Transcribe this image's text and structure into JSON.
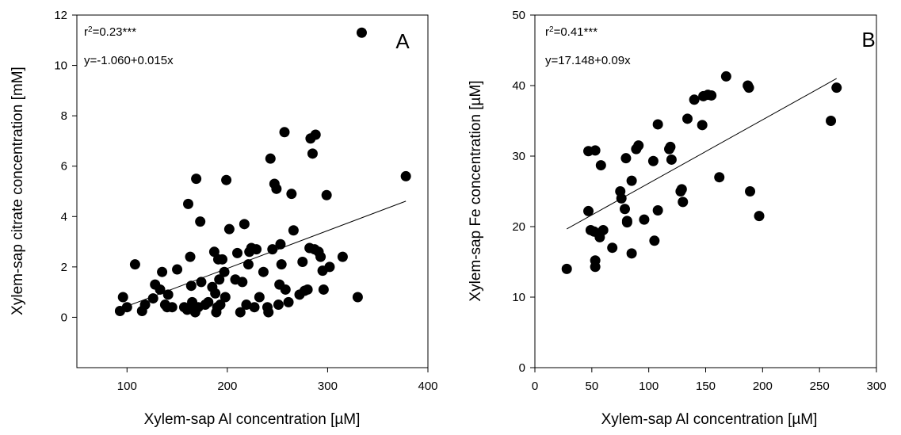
{
  "chart_data": [
    {
      "type": "scatter",
      "panel_label": "A",
      "xlabel": "Xylem-sap Al concentration [µM]",
      "ylabel": "Xylem-sap citrate concentration  [mM]",
      "xlim": [
        50,
        400
      ],
      "ylim": [
        -2,
        12
      ],
      "xticks": [
        100,
        200,
        300,
        400
      ],
      "yticks": [
        0,
        2,
        4,
        6,
        8,
        10,
        12
      ],
      "annotations": {
        "r2_prefix": "r",
        "r2_sup": "2",
        "r2_value": "=0.23***",
        "equation": "y=-1.060+0.015x"
      },
      "regression": {
        "intercept": -1.06,
        "slope": 0.015,
        "x_range": [
          93,
          378
        ]
      },
      "points": [
        [
          93,
          0.25
        ],
        [
          96,
          0.8
        ],
        [
          100,
          0.4
        ],
        [
          108,
          2.1
        ],
        [
          115,
          0.25
        ],
        [
          118,
          0.5
        ],
        [
          126,
          0.75
        ],
        [
          128,
          1.3
        ],
        [
          133,
          1.1
        ],
        [
          135,
          1.8
        ],
        [
          138,
          0.5
        ],
        [
          140,
          0.4
        ],
        [
          141,
          0.9
        ],
        [
          145,
          0.4
        ],
        [
          150,
          1.9
        ],
        [
          157,
          0.4
        ],
        [
          160,
          0.3
        ],
        [
          161,
          4.5
        ],
        [
          163,
          2.4
        ],
        [
          164,
          1.25
        ],
        [
          165,
          0.6
        ],
        [
          166,
          0.4
        ],
        [
          168,
          0.2
        ],
        [
          169,
          5.5
        ],
        [
          171,
          0.4
        ],
        [
          173,
          3.8
        ],
        [
          174,
          1.4
        ],
        [
          178,
          0.5
        ],
        [
          181,
          0.6
        ],
        [
          185,
          1.2
        ],
        [
          187,
          2.6
        ],
        [
          188,
          0.95
        ],
        [
          189,
          0.2
        ],
        [
          190,
          0.4
        ],
        [
          191,
          2.3
        ],
        [
          192,
          1.5
        ],
        [
          193,
          0.5
        ],
        [
          195,
          2.3
        ],
        [
          197,
          1.8
        ],
        [
          198,
          0.8
        ],
        [
          199,
          5.45
        ],
        [
          202,
          3.5
        ],
        [
          208,
          1.5
        ],
        [
          210,
          2.55
        ],
        [
          213,
          0.2
        ],
        [
          215,
          1.4
        ],
        [
          217,
          3.7
        ],
        [
          219,
          0.5
        ],
        [
          221,
          2.1
        ],
        [
          222,
          2.6
        ],
        [
          224,
          2.75
        ],
        [
          227,
          0.4
        ],
        [
          229,
          2.7
        ],
        [
          232,
          0.8
        ],
        [
          236,
          1.8
        ],
        [
          240,
          0.4
        ],
        [
          241,
          0.2
        ],
        [
          243,
          6.3
        ],
        [
          245,
          2.7
        ],
        [
          247,
          5.3
        ],
        [
          249,
          5.1
        ],
        [
          251,
          0.5
        ],
        [
          252,
          1.3
        ],
        [
          253,
          2.9
        ],
        [
          254,
          2.1
        ],
        [
          257,
          7.35
        ],
        [
          258,
          1.1
        ],
        [
          261,
          0.6
        ],
        [
          264,
          4.9
        ],
        [
          266,
          3.45
        ],
        [
          272,
          0.9
        ],
        [
          275,
          2.2
        ],
        [
          277,
          1.05
        ],
        [
          280,
          1.1
        ],
        [
          282,
          2.75
        ],
        [
          283,
          7.1
        ],
        [
          285,
          6.5
        ],
        [
          287,
          2.7
        ],
        [
          288,
          7.25
        ],
        [
          291,
          2.6
        ],
        [
          293,
          2.4
        ],
        [
          295,
          1.85
        ],
        [
          296,
          1.1
        ],
        [
          299,
          4.85
        ],
        [
          302,
          2.0
        ],
        [
          315,
          2.4
        ],
        [
          330,
          0.8
        ],
        [
          334,
          11.3
        ],
        [
          378,
          5.6
        ]
      ]
    },
    {
      "type": "scatter",
      "panel_label": "B",
      "xlabel": "Xylem-sap Al concentration [µM]",
      "ylabel": "Xylem-sap Fe concentration [µM]",
      "xlim": [
        0,
        300
      ],
      "ylim": [
        0,
        50
      ],
      "xticks": [
        0,
        50,
        100,
        150,
        200,
        250,
        300
      ],
      "yticks": [
        0,
        10,
        20,
        30,
        40,
        50
      ],
      "annotations": {
        "r2_prefix": "r",
        "r2_sup": "2",
        "r2_value": "=0.41***",
        "equation": "y=17.148+0.09x"
      },
      "regression": {
        "intercept": 17.148,
        "slope": 0.09,
        "x_range": [
          28,
          265
        ]
      },
      "points": [
        [
          28,
          14
        ],
        [
          47,
          22.2
        ],
        [
          47,
          30.7
        ],
        [
          49,
          19.5
        ],
        [
          52,
          19.3
        ],
        [
          53,
          30.8
        ],
        [
          53,
          15.2
        ],
        [
          53,
          14.3
        ],
        [
          56,
          19
        ],
        [
          57,
          18.5
        ],
        [
          58,
          28.7
        ],
        [
          60,
          19.5
        ],
        [
          68,
          17
        ],
        [
          75,
          25
        ],
        [
          76,
          24
        ],
        [
          79,
          22.5
        ],
        [
          80,
          29.7
        ],
        [
          81,
          20.8
        ],
        [
          81,
          20.6
        ],
        [
          85,
          16.2
        ],
        [
          85,
          26.5
        ],
        [
          89,
          31
        ],
        [
          91,
          31.5
        ],
        [
          96,
          21
        ],
        [
          104,
          29.3
        ],
        [
          105,
          18
        ],
        [
          108,
          22.3
        ],
        [
          108,
          34.5
        ],
        [
          118,
          31
        ],
        [
          119,
          31.3
        ],
        [
          120,
          29.5
        ],
        [
          128,
          25
        ],
        [
          129,
          25.3
        ],
        [
          130,
          23.5
        ],
        [
          134,
          35.3
        ],
        [
          140,
          38
        ],
        [
          147,
          34.4
        ],
        [
          148,
          38.5
        ],
        [
          152,
          38.7
        ],
        [
          155,
          38.6
        ],
        [
          162,
          27
        ],
        [
          168,
          41.3
        ],
        [
          187,
          40
        ],
        [
          188,
          39.7
        ],
        [
          189,
          25
        ],
        [
          197,
          21.5
        ],
        [
          260,
          35
        ],
        [
          265,
          39.7
        ]
      ]
    }
  ]
}
